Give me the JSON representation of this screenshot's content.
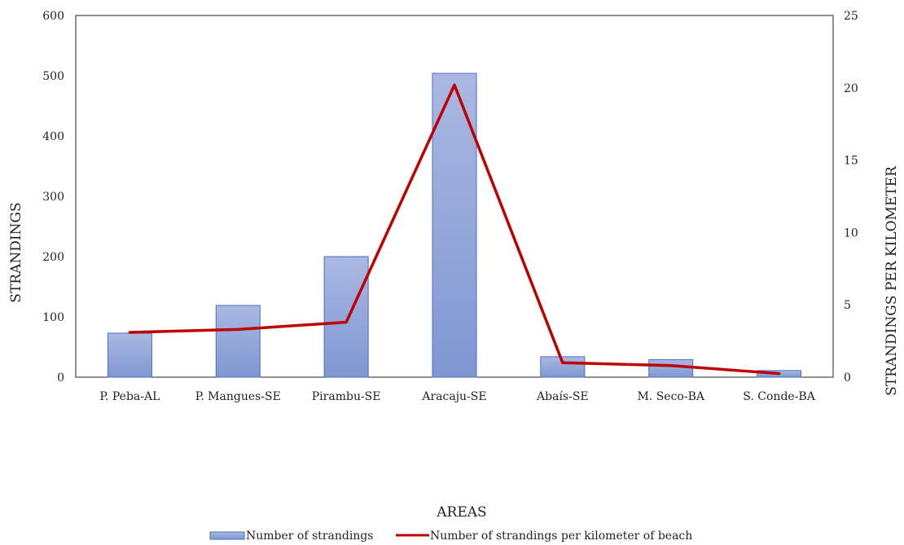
{
  "chart_data": {
    "type": "bar",
    "categories": [
      "P. Peba-AL",
      "P. Mangues-SE",
      "Pirambu-SE",
      "Aracaju-SE",
      "Abaís-SE",
      "M. Seco-BA",
      "S. Conde-BA"
    ],
    "series": [
      {
        "name": "Number of strandings",
        "kind": "bar",
        "axis": "left",
        "values": [
          73,
          119,
          200,
          504,
          34,
          29,
          11
        ],
        "color": "#8fa5d9"
      },
      {
        "name": "Number of strandings per kilometer of beach",
        "kind": "line",
        "axis": "right",
        "values": [
          3.1,
          3.3,
          3.8,
          20.2,
          1.0,
          0.8,
          0.25
        ],
        "color": "#c00000"
      }
    ],
    "xlabel": "AREAS",
    "ylabel": "STRANDINGS",
    "y2label": "STRANDINGS PER KILOMETER",
    "ylim": [
      0,
      600
    ],
    "y2lim": [
      0,
      25
    ],
    "yticks": [
      0,
      100,
      200,
      300,
      400,
      500,
      600
    ],
    "y2ticks": [
      0,
      5,
      10,
      15,
      20,
      25
    ],
    "grid": false,
    "legend_position": "bottom"
  }
}
